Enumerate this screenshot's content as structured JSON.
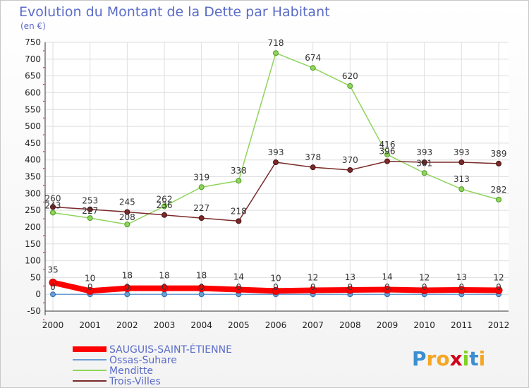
{
  "chart_data": {
    "type": "line",
    "title": "Evolution du Montant de la Dette par Habitant",
    "subtitle": "(en €)",
    "xlabel": "",
    "ylabel": "",
    "x": [
      "2000",
      "2001",
      "2002",
      "2003",
      "2004",
      "2005",
      "2006",
      "2007",
      "2008",
      "2009",
      "2010",
      "2011",
      "2012"
    ],
    "ylim": [
      -50,
      750
    ],
    "yticks": [
      -50,
      0,
      50,
      100,
      150,
      200,
      250,
      300,
      350,
      400,
      450,
      500,
      550,
      600,
      650,
      700,
      750
    ],
    "grid": true,
    "legend_position": "bottom-left",
    "series": [
      {
        "name": "SAUGUIS-SAINT-ÉTIENNE",
        "color": "#ff0000",
        "values": [
          35,
          10,
          18,
          18,
          18,
          14,
          10,
          12,
          13,
          14,
          12,
          13,
          12
        ]
      },
      {
        "name": "Ossas-Suhare",
        "color": "#6a9fd4",
        "values": [
          0,
          0,
          0,
          0,
          0,
          0,
          0,
          0,
          0,
          0,
          0,
          0,
          0
        ]
      },
      {
        "name": "Menditte",
        "color": "#8fd45c",
        "values": [
          243,
          227,
          208,
          262,
          319,
          338,
          718,
          674,
          620,
          416,
          361,
          313,
          282
        ]
      },
      {
        "name": "Trois-Villes",
        "color": "#7a2a2a",
        "values": [
          260,
          253,
          245,
          236,
          227,
          218,
          393,
          378,
          370,
          396,
          393,
          393,
          389
        ]
      }
    ],
    "logo": "Proxiti"
  }
}
